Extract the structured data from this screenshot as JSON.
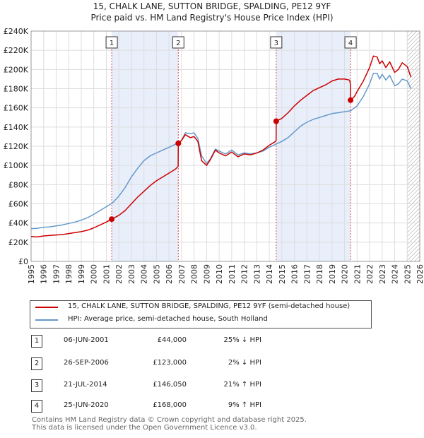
{
  "title_line1": "15, CHALK LANE, SUTTON BRIDGE, SPALDING, PE12 9YF",
  "title_line2": "Price paid vs. HM Land Registry's House Price Index (HPI)",
  "legend": {
    "property": "15, CHALK LANE, SUTTON BRIDGE, SPALDING, PE12 9YF (semi-detached house)",
    "hpi": "HPI: Average price, semi-detached house, South Holland"
  },
  "transactions": [
    {
      "id": "1",
      "date": "06-JUN-2001",
      "price": "£44,000",
      "hpi": "25% ↓ HPI"
    },
    {
      "id": "2",
      "date": "26-SEP-2006",
      "price": "£123,000",
      "hpi": "2% ↓ HPI"
    },
    {
      "id": "3",
      "date": "21-JUL-2014",
      "price": "£146,050",
      "hpi": "21% ↑ HPI"
    },
    {
      "id": "4",
      "date": "25-JUN-2020",
      "price": "£168,000",
      "hpi": "9% ↑ HPI"
    }
  ],
  "footer_line1": "Contains HM Land Registry data © Crown copyright and database right 2025.",
  "footer_line2": "This data is licensed under the Open Government Licence v3.0.",
  "colors": {
    "property_line": "#cc0000",
    "hpi_line": "#6699cc",
    "shade": "#e8eefa",
    "grid": "#dddddd"
  },
  "chart_data": {
    "type": "line",
    "title": "Price paid vs. HM Land Registry's House Price Index (HPI)",
    "xlim": [
      1995,
      2026
    ],
    "ylim": [
      0,
      240000
    ],
    "y_ticks": [
      0,
      20000,
      40000,
      60000,
      80000,
      100000,
      120000,
      140000,
      160000,
      180000,
      200000,
      220000,
      240000
    ],
    "y_tick_labels": [
      "£0",
      "£20K",
      "£40K",
      "£60K",
      "£80K",
      "£100K",
      "£120K",
      "£140K",
      "£160K",
      "£180K",
      "£200K",
      "£220K",
      "£240K"
    ],
    "x_ticks": [
      "1995",
      "1996",
      "1997",
      "1998",
      "1999",
      "2000",
      "2001",
      "2002",
      "2003",
      "2004",
      "2005",
      "2006",
      "2007",
      "2008",
      "2009",
      "2010",
      "2011",
      "2012",
      "2013",
      "2014",
      "2015",
      "2016",
      "2017",
      "2018",
      "2019",
      "2020",
      "2021",
      "2022",
      "2023",
      "2024",
      "2025",
      "2026"
    ],
    "shaded_ranges": [
      [
        2001.43,
        2006.74
      ],
      [
        2014.55,
        2020.48
      ]
    ],
    "hatched_from": 2025.0,
    "series": [
      {
        "name": "15, CHALK LANE, SUTTON BRIDGE, SPALDING, PE12 9YF (semi-detached house)",
        "x": [
          1995.0,
          1995.5,
          1996.0,
          1996.5,
          1997.0,
          1997.5,
          1998.0,
          1998.5,
          1999.0,
          1999.5,
          2000.0,
          2000.5,
          2001.0,
          2001.43,
          2001.5,
          2002.0,
          2002.5,
          2003.0,
          2003.5,
          2004.0,
          2004.5,
          2005.0,
          2005.5,
          2006.0,
          2006.5,
          2006.73,
          2006.74,
          2007.0,
          2007.3,
          2007.7,
          2008.0,
          2008.3,
          2008.6,
          2009.0,
          2009.3,
          2009.7,
          2010.0,
          2010.5,
          2011.0,
          2011.5,
          2012.0,
          2012.5,
          2013.0,
          2013.5,
          2014.0,
          2014.5,
          2014.54,
          2014.55,
          2015.0,
          2015.5,
          2016.0,
          2016.5,
          2017.0,
          2017.5,
          2018.0,
          2018.5,
          2019.0,
          2019.5,
          2020.0,
          2020.4,
          2020.47,
          2020.48,
          2020.8,
          2021.0,
          2021.5,
          2022.0,
          2022.3,
          2022.6,
          2022.8,
          2023.0,
          2023.3,
          2023.6,
          2024.0,
          2024.3,
          2024.6,
          2025.0,
          2025.3
        ],
        "values": [
          26000,
          25500,
          26500,
          27000,
          27500,
          28000,
          29000,
          30000,
          31000,
          32500,
          35000,
          38000,
          41000,
          44000,
          44500,
          48000,
          53000,
          60000,
          67000,
          73000,
          79000,
          84000,
          88000,
          92000,
          96000,
          99000,
          123000,
          126000,
          132000,
          129000,
          130000,
          125000,
          105000,
          100000,
          106000,
          116000,
          113000,
          110000,
          114000,
          109000,
          112000,
          111000,
          113000,
          116000,
          121000,
          125000,
          126000,
          146050,
          149000,
          155000,
          162000,
          168000,
          173000,
          178000,
          181000,
          184000,
          188000,
          190000,
          190000,
          189000,
          185000,
          168000,
          172000,
          177000,
          188000,
          202000,
          214000,
          213000,
          206000,
          209000,
          202000,
          208000,
          197000,
          200000,
          207000,
          203000,
          192000
        ]
      },
      {
        "name": "HPI: Average price, semi-detached house, South Holland",
        "x": [
          1995.0,
          1995.5,
          1996.0,
          1996.5,
          1997.0,
          1997.5,
          1998.0,
          1998.5,
          1999.0,
          1999.5,
          2000.0,
          2000.5,
          2001.0,
          2001.5,
          2002.0,
          2002.5,
          2003.0,
          2003.5,
          2004.0,
          2004.5,
          2005.0,
          2005.5,
          2006.0,
          2006.5,
          2007.0,
          2007.3,
          2007.7,
          2008.0,
          2008.3,
          2008.6,
          2009.0,
          2009.3,
          2009.7,
          2010.0,
          2010.5,
          2011.0,
          2011.5,
          2012.0,
          2012.5,
          2013.0,
          2013.5,
          2014.0,
          2014.5,
          2015.0,
          2015.5,
          2016.0,
          2016.5,
          2017.0,
          2017.5,
          2018.0,
          2018.5,
          2019.0,
          2019.5,
          2020.0,
          2020.5,
          2021.0,
          2021.5,
          2022.0,
          2022.3,
          2022.6,
          2022.8,
          2023.0,
          2023.3,
          2023.6,
          2024.0,
          2024.3,
          2024.6,
          2025.0,
          2025.3
        ],
        "values": [
          34000,
          34500,
          35500,
          36000,
          37000,
          38000,
          39500,
          41000,
          43000,
          45500,
          49000,
          53000,
          57000,
          61000,
          68000,
          77000,
          88000,
          97000,
          105000,
          110000,
          113000,
          116000,
          119000,
          122000,
          126000,
          134000,
          133000,
          134000,
          128000,
          110000,
          102000,
          107000,
          117000,
          115000,
          112000,
          116000,
          111000,
          113000,
          112000,
          113000,
          115000,
          119000,
          122000,
          125000,
          129000,
          135000,
          141000,
          145000,
          148000,
          150000,
          152000,
          154000,
          155000,
          156000,
          157000,
          162000,
          172000,
          185000,
          196000,
          196000,
          190000,
          195000,
          189000,
          194000,
          183000,
          185000,
          190000,
          188000,
          180000
        ]
      }
    ],
    "markers": [
      {
        "label": "1",
        "x": 2001.43,
        "y": 44000
      },
      {
        "label": "2",
        "x": 2006.74,
        "y": 123000
      },
      {
        "label": "3",
        "x": 2014.55,
        "y": 146050
      },
      {
        "label": "4",
        "x": 2020.48,
        "y": 168000
      }
    ]
  }
}
